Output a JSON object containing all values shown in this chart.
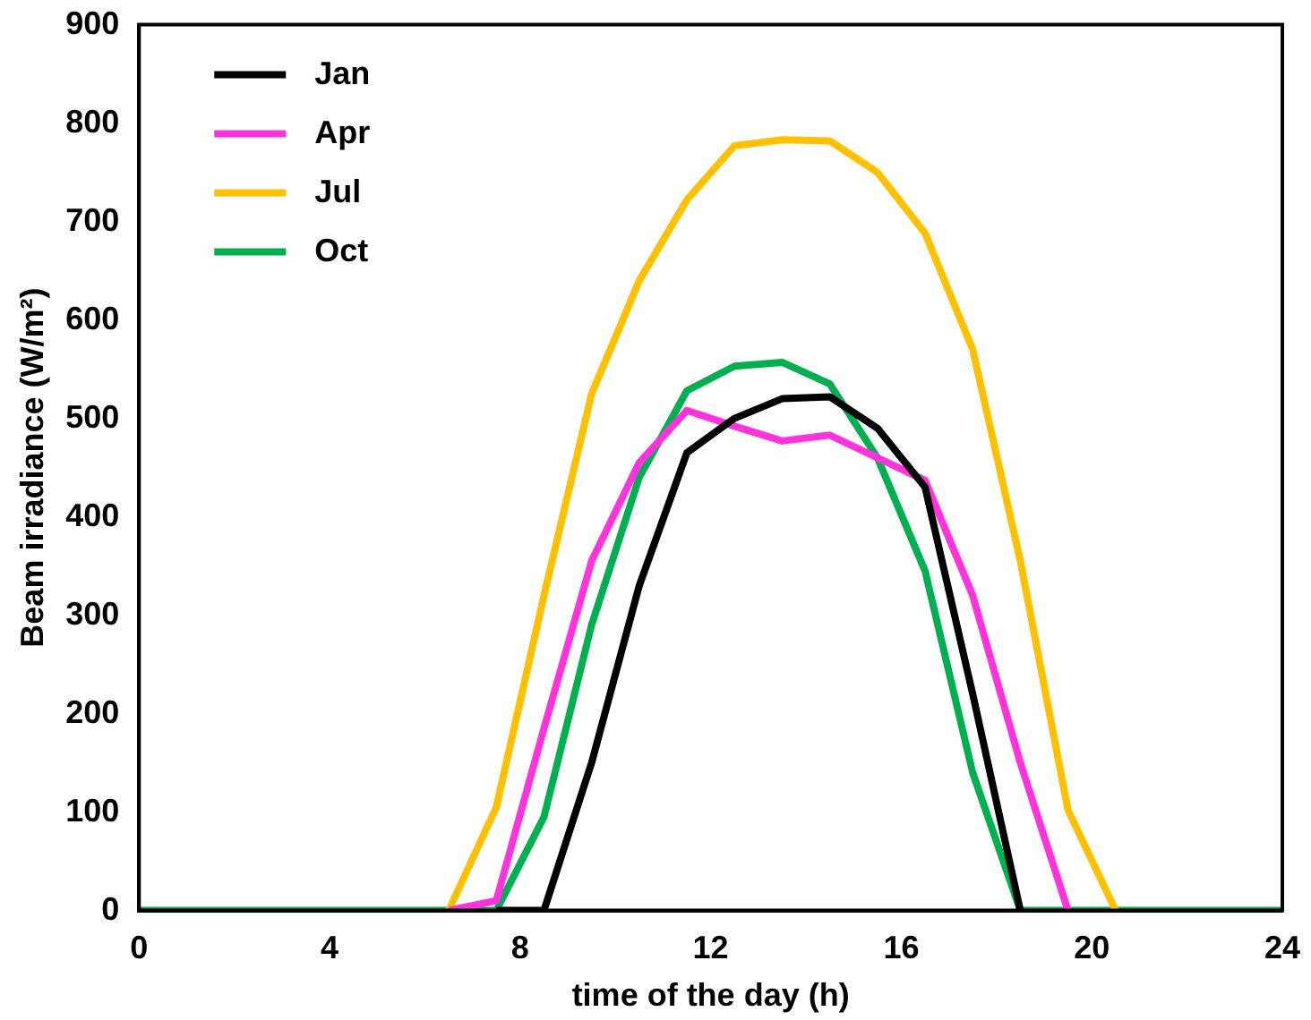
{
  "chart_data": {
    "type": "line",
    "xlabel": "time of the day (h)",
    "ylabel": "Beam irradiance (W/m²)",
    "x": [
      0,
      0.5,
      1.5,
      2.5,
      3.5,
      4.5,
      5.5,
      6.5,
      7.5,
      8.5,
      9.5,
      10.5,
      11.5,
      12.5,
      13.5,
      14.5,
      15.5,
      16.5,
      17.5,
      18.5,
      19.5,
      20.5,
      21.5,
      22.5,
      23.5,
      24
    ],
    "series": [
      {
        "name": "Jan",
        "color": "#000000",
        "values": [
          null,
          null,
          null,
          null,
          null,
          null,
          null,
          null,
          0,
          0,
          150,
          330,
          465,
          500,
          520,
          522,
          490,
          430,
          220,
          0,
          null,
          null,
          null,
          null,
          null,
          null
        ]
      },
      {
        "name": "Apr",
        "color": "#ff33dd",
        "values": [
          null,
          null,
          null,
          null,
          null,
          null,
          null,
          0,
          10,
          185,
          355,
          455,
          508,
          492,
          477,
          483,
          460,
          437,
          320,
          150,
          0,
          null,
          null,
          null,
          null,
          null
        ]
      },
      {
        "name": "Jul",
        "color": "#ffc000",
        "values": [
          null,
          null,
          null,
          null,
          null,
          null,
          null,
          0,
          105,
          320,
          525,
          640,
          722,
          777,
          783,
          782,
          750,
          688,
          570,
          355,
          102,
          0,
          null,
          null,
          null,
          null
        ]
      },
      {
        "name": "Oct",
        "color": "#00b050",
        "values": [
          0,
          0,
          0,
          0,
          0,
          0,
          0,
          0,
          0,
          95,
          290,
          440,
          528,
          553,
          557,
          535,
          460,
          345,
          140,
          0,
          0,
          0,
          0,
          0,
          0,
          0
        ]
      }
    ],
    "xlim": [
      0,
      24
    ],
    "xticks": [
      0,
      4,
      8,
      12,
      16,
      20,
      24
    ],
    "ylim": [
      0,
      900
    ],
    "yticks": [
      0,
      100,
      200,
      300,
      400,
      500,
      600,
      700,
      800,
      900
    ],
    "grid": false,
    "legend": "top left",
    "marker": "none",
    "line_style": "solid"
  }
}
